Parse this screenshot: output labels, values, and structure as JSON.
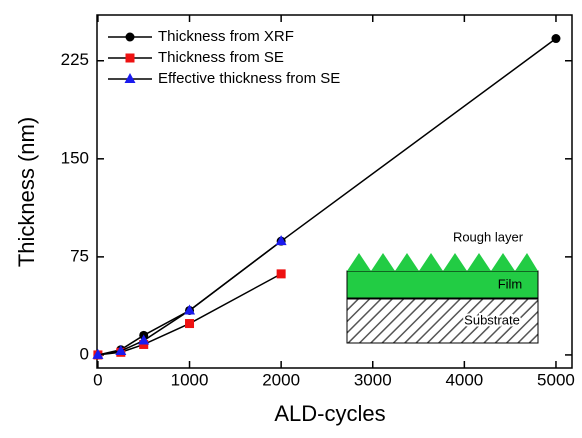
{
  "chart_data": {
    "type": "line",
    "xlabel": "ALD-cycles",
    "ylabel": "Thickness (nm)",
    "xlim": [
      -10,
      5175
    ],
    "ylim": [
      -10,
      260
    ],
    "xticks": [
      0,
      1000,
      2000,
      3000,
      4000,
      5000
    ],
    "yticks": [
      0,
      75,
      150,
      225
    ],
    "legend": "upper left",
    "line_color": "#000000",
    "series": [
      {
        "name": "Thickness from XRF",
        "color": "#000000",
        "marker": "circle",
        "x": [
          0,
          250,
          500,
          1000,
          2000,
          5000
        ],
        "values": [
          0,
          4,
          15,
          34,
          87,
          242
        ]
      },
      {
        "name": "Thickness from SE",
        "color": "#ee1111",
        "marker": "square",
        "x": [
          0,
          250,
          500,
          1000,
          2000
        ],
        "values": [
          0,
          2,
          8,
          24,
          62
        ]
      },
      {
        "name": "Effective thickness from SE",
        "color": "#1a1aee",
        "marker": "triangle",
        "x": [
          0,
          250,
          500,
          1000,
          2000
        ],
        "values": [
          0,
          3,
          11,
          34,
          87
        ]
      }
    ],
    "annotations": [
      "Rough layer",
      "Film",
      "Substrate"
    ]
  }
}
